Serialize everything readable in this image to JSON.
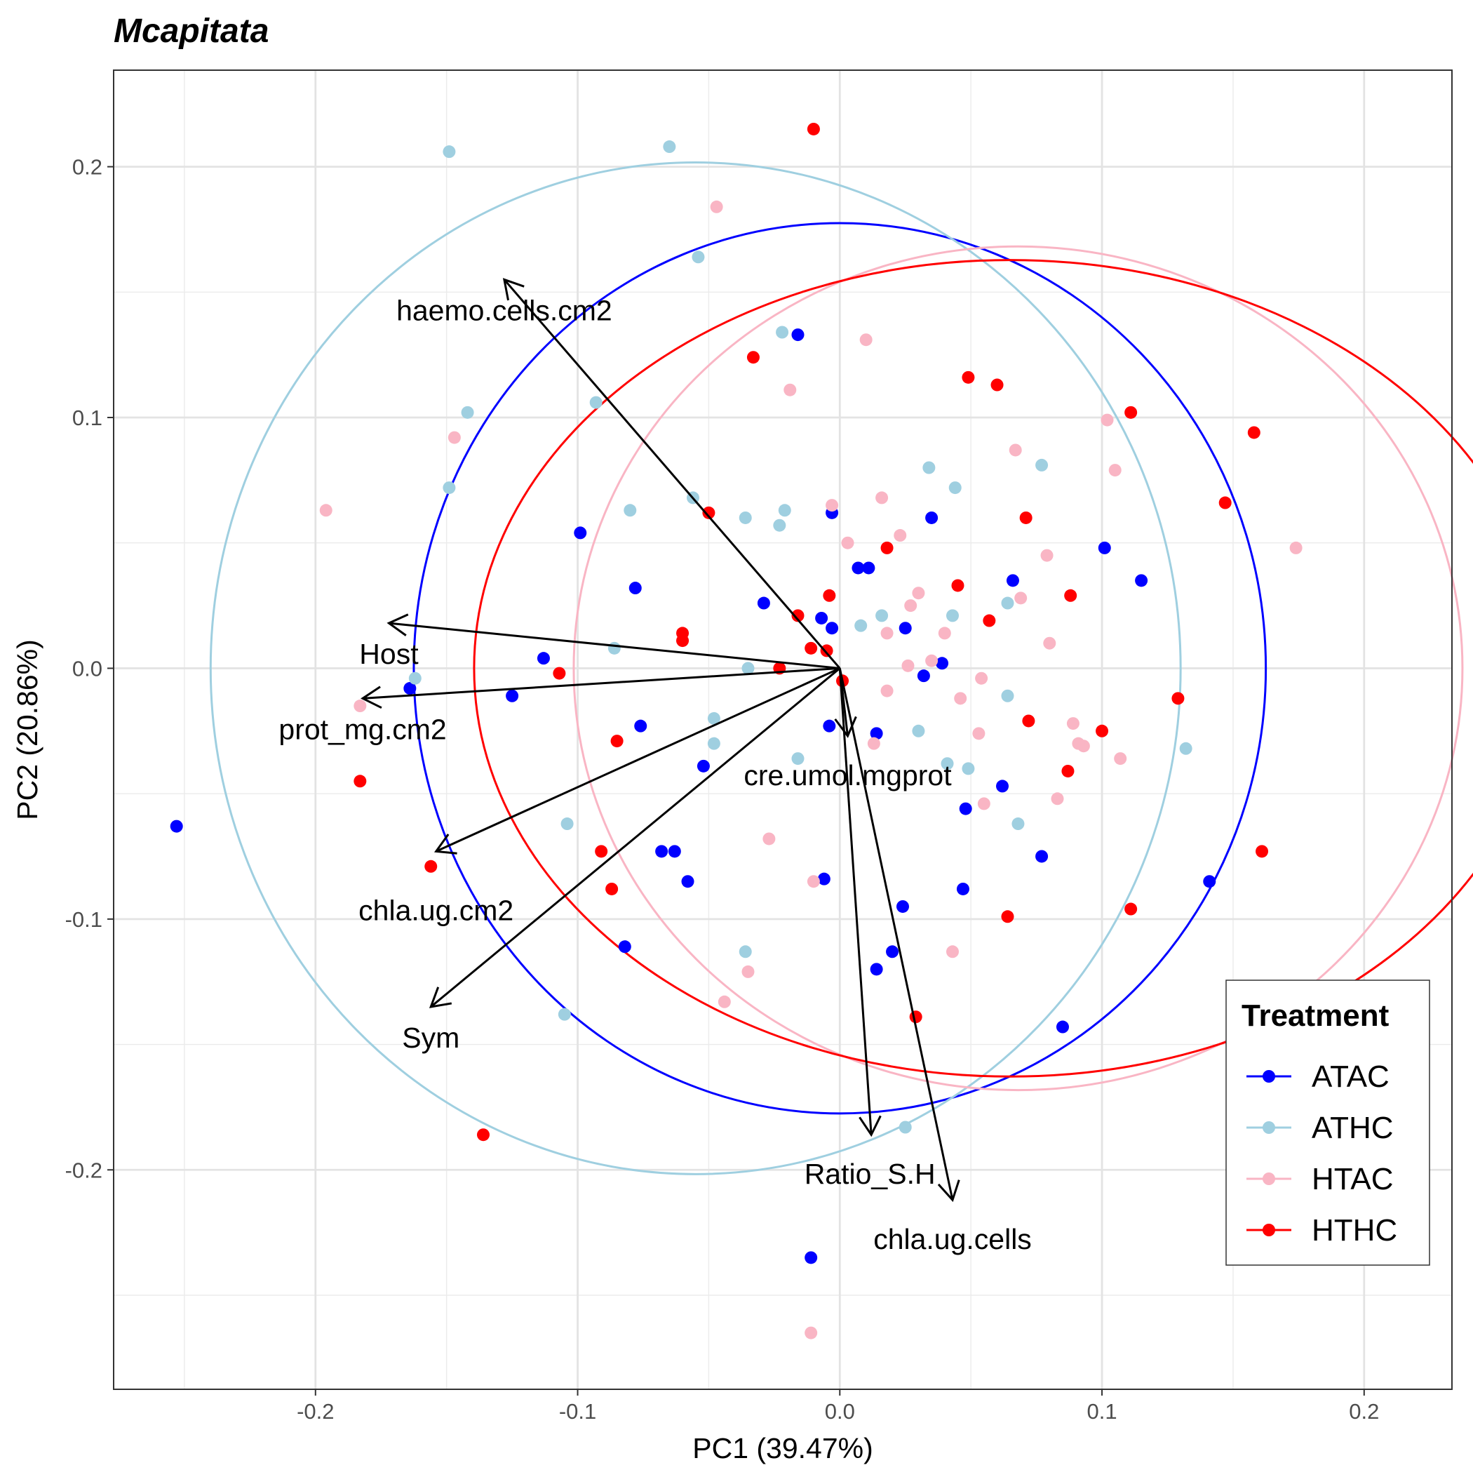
{
  "chart_data": {
    "type": "scatter",
    "title": "Mcapitata",
    "xlabel": "PC1 (39.47%)",
    "ylabel": "PC2 (20.86%)",
    "xlim": [
      -0.277,
      0.2335
    ],
    "ylim": [
      -0.2875,
      0.2385
    ],
    "x_ticks": [
      -0.2,
      -0.1,
      0.0,
      0.1,
      0.2
    ],
    "x_tick_labels": [
      "-0.2",
      "-0.1",
      "0.0",
      "0.1",
      "0.2"
    ],
    "y_ticks": [
      -0.2,
      -0.1,
      0.0,
      0.1,
      0.2
    ],
    "y_tick_labels": [
      "-0.2",
      "-0.1",
      "0.0",
      "0.1",
      "0.2"
    ],
    "grid": true,
    "legend": {
      "title": "Treatment",
      "placement": "bottom-right inside",
      "entries": [
        "ATAC",
        "ATHC",
        "HTAC",
        "HTHC"
      ]
    },
    "series": [
      {
        "name": "ATAC",
        "color": "#0000FF",
        "ellipse": {
          "cx": 0.0,
          "cy": 0.0,
          "rx": 0.1625,
          "ry": 0.1775
        },
        "points": [
          [
            -0.253,
            -0.063
          ],
          [
            -0.164,
            -0.008
          ],
          [
            -0.125,
            -0.011
          ],
          [
            -0.113,
            0.004
          ],
          [
            -0.099,
            0.054
          ],
          [
            -0.078,
            0.032
          ],
          [
            -0.076,
            -0.023
          ],
          [
            -0.082,
            -0.111
          ],
          [
            -0.068,
            -0.073
          ],
          [
            -0.063,
            -0.073
          ],
          [
            -0.058,
            -0.085
          ],
          [
            -0.052,
            -0.039
          ],
          [
            -0.029,
            0.026
          ],
          [
            -0.016,
            0.133
          ],
          [
            -0.007,
            0.02
          ],
          [
            -0.003,
            0.016
          ],
          [
            -0.003,
            0.062
          ],
          [
            -0.004,
            -0.023
          ],
          [
            0.007,
            0.04
          ],
          [
            0.011,
            0.04
          ],
          [
            0.014,
            -0.026
          ],
          [
            0.025,
            0.016
          ],
          [
            0.032,
            -0.003
          ],
          [
            0.035,
            0.06
          ],
          [
            0.039,
            0.002
          ],
          [
            0.024,
            -0.095
          ],
          [
            0.02,
            -0.113
          ],
          [
            0.014,
            -0.12
          ],
          [
            -0.006,
            -0.084
          ],
          [
            0.048,
            -0.056
          ],
          [
            0.047,
            -0.088
          ],
          [
            0.062,
            -0.047
          ],
          [
            0.066,
            0.035
          ],
          [
            0.077,
            -0.075
          ],
          [
            0.101,
            0.048
          ],
          [
            0.115,
            0.035
          ],
          [
            0.085,
            -0.143
          ],
          [
            0.141,
            -0.085
          ],
          [
            -0.011,
            -0.235
          ]
        ]
      },
      {
        "name": "ATHC",
        "color": "#9FCFE0",
        "ellipse": {
          "cx": -0.055,
          "cy": 0.0,
          "rx": 0.185,
          "ry": 0.2017
        },
        "points": [
          [
            -0.149,
            0.206
          ],
          [
            -0.065,
            0.208
          ],
          [
            -0.054,
            0.164
          ],
          [
            -0.142,
            0.102
          ],
          [
            -0.149,
            0.072
          ],
          [
            -0.093,
            0.106
          ],
          [
            -0.08,
            0.063
          ],
          [
            -0.056,
            0.068
          ],
          [
            -0.036,
            0.06
          ],
          [
            -0.023,
            0.057
          ],
          [
            -0.021,
            0.063
          ],
          [
            -0.022,
            0.134
          ],
          [
            -0.086,
            0.008
          ],
          [
            -0.162,
            -0.004
          ],
          [
            -0.035,
            0.0
          ],
          [
            -0.048,
            -0.02
          ],
          [
            -0.048,
            -0.03
          ],
          [
            -0.016,
            -0.036
          ],
          [
            -0.104,
            -0.062
          ],
          [
            -0.105,
            -0.138
          ],
          [
            -0.036,
            -0.113
          ],
          [
            0.008,
            0.017
          ],
          [
            0.016,
            0.021
          ],
          [
            0.034,
            0.08
          ],
          [
            0.043,
            0.021
          ],
          [
            0.044,
            0.072
          ],
          [
            0.077,
            0.081
          ],
          [
            0.064,
            0.026
          ],
          [
            0.064,
            -0.011
          ],
          [
            0.03,
            -0.025
          ],
          [
            0.041,
            -0.038
          ],
          [
            0.049,
            -0.04
          ],
          [
            0.068,
            -0.062
          ],
          [
            0.132,
            -0.032
          ],
          [
            0.025,
            -0.183
          ]
        ]
      },
      {
        "name": "HTAC",
        "color": "#F9B5C4",
        "ellipse": {
          "cx": 0.068,
          "cy": 0.0,
          "rx": 0.1695,
          "ry": 0.1682
        },
        "points": [
          [
            -0.196,
            0.063
          ],
          [
            -0.147,
            0.092
          ],
          [
            -0.047,
            0.184
          ],
          [
            -0.019,
            0.111
          ],
          [
            0.01,
            0.131
          ],
          [
            -0.183,
            -0.015
          ],
          [
            -0.003,
            0.065
          ],
          [
            0.003,
            0.05
          ],
          [
            0.016,
            0.068
          ],
          [
            0.023,
            0.053
          ],
          [
            0.03,
            0.03
          ],
          [
            0.027,
            0.025
          ],
          [
            0.018,
            0.014
          ],
          [
            0.04,
            0.014
          ],
          [
            0.026,
            0.001
          ],
          [
            0.035,
            0.003
          ],
          [
            0.018,
            -0.009
          ],
          [
            0.046,
            -0.012
          ],
          [
            0.054,
            -0.004
          ],
          [
            0.053,
            -0.026
          ],
          [
            0.055,
            -0.054
          ],
          [
            0.067,
            0.087
          ],
          [
            0.069,
            0.028
          ],
          [
            0.079,
            0.045
          ],
          [
            0.08,
            0.01
          ],
          [
            0.083,
            -0.052
          ],
          [
            0.089,
            -0.022
          ],
          [
            0.093,
            -0.031
          ],
          [
            0.091,
            -0.03
          ],
          [
            0.102,
            0.099
          ],
          [
            0.105,
            0.079
          ],
          [
            0.107,
            -0.036
          ],
          [
            0.174,
            0.048
          ],
          [
            -0.027,
            -0.068
          ],
          [
            -0.01,
            -0.085
          ],
          [
            0.013,
            -0.03
          ],
          [
            -0.044,
            -0.133
          ],
          [
            -0.035,
            -0.121
          ],
          [
            0.043,
            -0.113
          ],
          [
            -0.011,
            -0.265
          ]
        ]
      },
      {
        "name": "HTHC",
        "color": "#FF0000",
        "ellipse": {
          "cx": 0.065,
          "cy": 0.0,
          "rx": 0.2045,
          "ry": 0.1628
        },
        "points": [
          [
            -0.01,
            0.215
          ],
          [
            -0.033,
            0.124
          ],
          [
            -0.05,
            0.062
          ],
          [
            0.049,
            0.116
          ],
          [
            0.06,
            0.113
          ],
          [
            0.111,
            0.102
          ],
          [
            0.158,
            0.094
          ],
          [
            0.147,
            0.066
          ],
          [
            0.071,
            0.06
          ],
          [
            0.018,
            0.048
          ],
          [
            0.045,
            0.033
          ],
          [
            0.088,
            0.029
          ],
          [
            -0.004,
            0.029
          ],
          [
            -0.016,
            0.021
          ],
          [
            0.057,
            0.019
          ],
          [
            -0.06,
            0.014
          ],
          [
            -0.06,
            0.011
          ],
          [
            -0.011,
            0.008
          ],
          [
            -0.005,
            0.007
          ],
          [
            -0.023,
            0.0
          ],
          [
            -0.107,
            -0.002
          ],
          [
            0.001,
            -0.005
          ],
          [
            0.072,
            -0.021
          ],
          [
            0.1,
            -0.025
          ],
          [
            0.129,
            -0.012
          ],
          [
            -0.085,
            -0.029
          ],
          [
            0.087,
            -0.041
          ],
          [
            -0.183,
            -0.045
          ],
          [
            -0.091,
            -0.073
          ],
          [
            -0.156,
            -0.079
          ],
          [
            -0.087,
            -0.088
          ],
          [
            0.064,
            -0.099
          ],
          [
            0.111,
            -0.096
          ],
          [
            0.161,
            -0.073
          ],
          [
            0.029,
            -0.139
          ],
          [
            -0.136,
            -0.186
          ]
        ]
      }
    ],
    "loadings": [
      {
        "name": "haemo.cells.cm2",
        "x": -0.128,
        "y": 0.155
      },
      {
        "name": "Host",
        "x": -0.172,
        "y": 0.018
      },
      {
        "name": "prot_mg.cm2",
        "x": -0.182,
        "y": -0.012
      },
      {
        "name": "chla.ug.cm2",
        "x": -0.154,
        "y": -0.073
      },
      {
        "name": "Sym",
        "x": -0.156,
        "y": -0.135
      },
      {
        "name": "cre.umol.mgprot",
        "x": 0.003,
        "y": -0.027
      },
      {
        "name": "Ratio_S.H",
        "x": 0.012,
        "y": -0.186
      },
      {
        "name": "chla.ug.cells",
        "x": 0.043,
        "y": -0.212
      }
    ]
  }
}
